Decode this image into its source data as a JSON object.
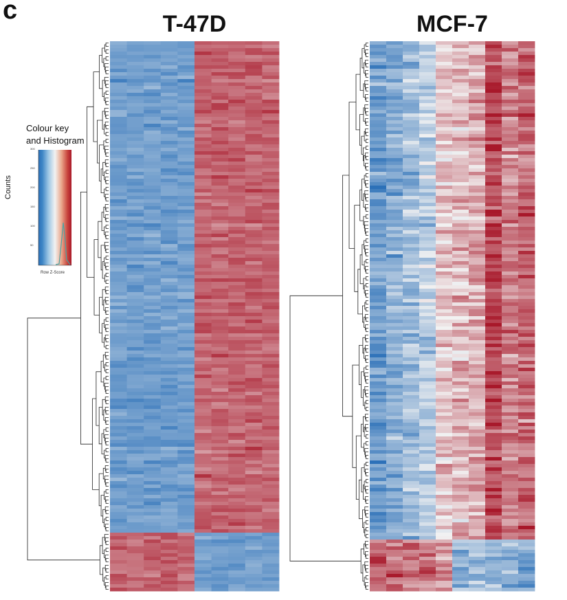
{
  "panel_label": "c",
  "chart_data": [
    {
      "type": "heatmap",
      "title": "T-47D",
      "columns": 10,
      "rows": 160,
      "row_clusters": [
        {
          "name": "",
          "rows": 143,
          "pattern": [
            -1,
            -1,
            -1,
            -1,
            -1,
            1,
            1,
            1,
            1,
            1
          ]
        },
        {
          "name": "",
          "rows": 17,
          "pattern": [
            1,
            1,
            1,
            1,
            1,
            -1,
            -1,
            -1,
            -1,
            -1
          ]
        }
      ],
      "value_range": [
        -2,
        2
      ],
      "dendrogram": "rows"
    },
    {
      "type": "heatmap",
      "title": "MCF-7",
      "columns": 10,
      "rows": 160,
      "row_clusters": [
        {
          "name": "",
          "rows": 145,
          "pattern": [
            -1,
            -0.8,
            -0.6,
            -0.4,
            0.3,
            0.4,
            0.5,
            1.2,
            0.8,
            1
          ]
        },
        {
          "name": "",
          "rows": 15,
          "pattern": [
            1,
            0.9,
            0.8,
            0.8,
            0.7,
            -0.8,
            -0.6,
            -0.7,
            -0.8,
            -0.9
          ]
        }
      ],
      "value_range": [
        -2,
        2
      ],
      "dendrogram": "rows"
    }
  ],
  "colour_key": {
    "title_line1": "Colour key",
    "title_line2": "and Histogram",
    "ylabel": "Counts",
    "xlabel": "Row Z-Score",
    "yticks": [
      "50",
      "100",
      "150",
      "200",
      "250",
      "300"
    ],
    "colors": {
      "low": "#2b70b8",
      "mid": "#f2f2f2",
      "high": "#a8182a"
    }
  }
}
